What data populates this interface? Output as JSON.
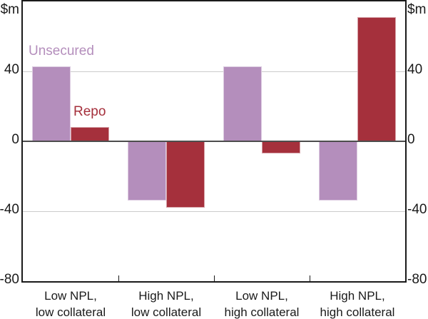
{
  "chart_data": {
    "type": "bar",
    "title": "",
    "unit_label": "$m",
    "xlabel": "",
    "ylabel": "$m",
    "categories": [
      {
        "line1": "Low NPL,",
        "line2": "low collateral"
      },
      {
        "line1": "High NPL,",
        "line2": "low collateral"
      },
      {
        "line1": "Low NPL,",
        "line2": "high collateral"
      },
      {
        "line1": "High NPL,",
        "line2": "high collateral"
      }
    ],
    "series": [
      {
        "name": "Unsecured",
        "color": "#b48ebc",
        "values": [
          43,
          -34,
          43,
          -34
        ]
      },
      {
        "name": "Repo",
        "color": "#a5303c",
        "values": [
          8,
          -38,
          -7,
          71
        ]
      }
    ],
    "ylim": [
      -80,
      80
    ],
    "yticks": [
      40,
      0,
      -40,
      -80
    ],
    "grid": "horizontal",
    "legend_position": "in-plot annotations",
    "colors": {
      "axis": "#1a1a1a",
      "gridline": "#cccccc",
      "zero_line": "#4d4d4d",
      "background": "#ffffff"
    }
  }
}
